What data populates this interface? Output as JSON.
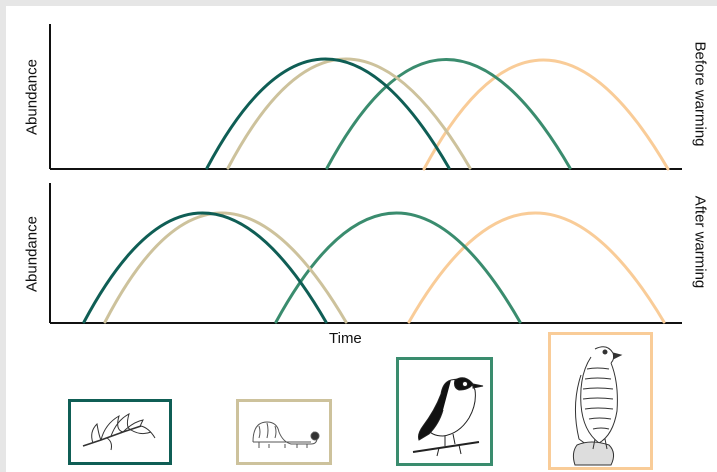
{
  "figure": {
    "x_label": "Time",
    "y_label_top": "Abundance",
    "y_label_bottom": "Abundance",
    "panel_top_label": "Before warming",
    "panel_bottom_label": "After warming"
  },
  "colors": {
    "plant": "#0f5e55",
    "caterpillar": "#cdc29c",
    "flycatcher": "#3a8c6e",
    "hawk": "#f9cc98",
    "axis": "#111111"
  },
  "species_icons": [
    {
      "name": "plant-bud-icon",
      "color_key": "plant"
    },
    {
      "name": "caterpillar-icon",
      "color_key": "caterpillar"
    },
    {
      "name": "flycatcher-bird-icon",
      "color_key": "flycatcher"
    },
    {
      "name": "sparrowhawk-icon",
      "color_key": "hawk"
    }
  ]
}
